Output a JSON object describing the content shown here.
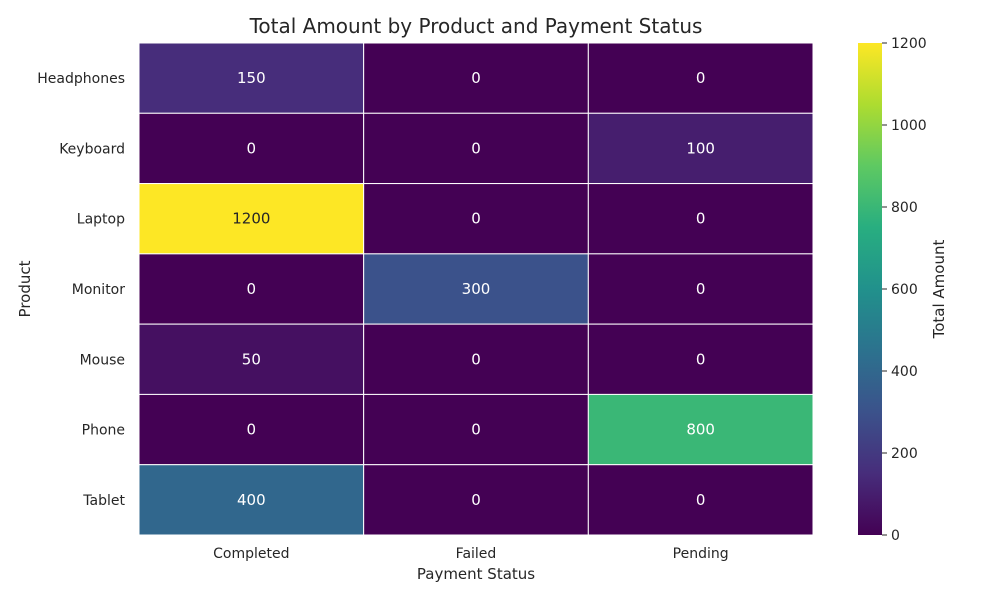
{
  "chart_data": {
    "type": "heatmap",
    "title": "Total Amount by Product and Payment Status",
    "xlabel": "Payment Status",
    "ylabel": "Product",
    "x_categories": [
      "Completed",
      "Failed",
      "Pending"
    ],
    "y_categories": [
      "Headphones",
      "Keyboard",
      "Laptop",
      "Monitor",
      "Mouse",
      "Phone",
      "Tablet"
    ],
    "values": [
      [
        150,
        0,
        0
      ],
      [
        0,
        0,
        100
      ],
      [
        1200,
        0,
        0
      ],
      [
        0,
        300,
        0
      ],
      [
        50,
        0,
        0
      ],
      [
        0,
        0,
        800
      ],
      [
        400,
        0,
        0
      ]
    ],
    "colorbar": {
      "label": "Total Amount",
      "range": [
        0,
        1200
      ],
      "ticks": [
        0,
        200,
        400,
        600,
        800,
        1000,
        1200
      ],
      "colormap": "viridis"
    },
    "annotations": true,
    "grid": false
  }
}
